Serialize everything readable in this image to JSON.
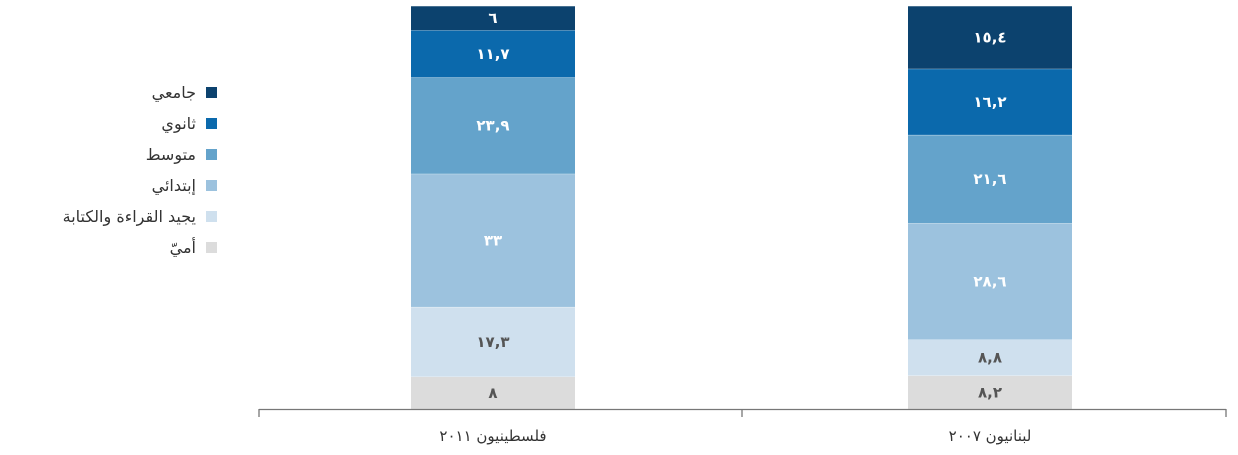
{
  "chart_data": {
    "type": "bar",
    "stacked": true,
    "orientation": "vertical",
    "categories": [
      "فلسطينيون ٢٠١١",
      "لبنانيون ٢٠٠٧"
    ],
    "series": [
      {
        "name": "أميّ",
        "values": [
          8,
          8.2
        ],
        "labels": [
          "٨",
          "٨,٢"
        ],
        "color": "#dcdcdc",
        "label_color": "#555555"
      },
      {
        "name": "يجيد القراءة والكتابة",
        "values": [
          17.3,
          8.8
        ],
        "labels": [
          "١٧,٣",
          "٨,٨"
        ],
        "color": "#cfe0ee",
        "label_color": "#555555"
      },
      {
        "name": "إبتدائي",
        "values": [
          33,
          28.6
        ],
        "labels": [
          "٣٣",
          "٢٨,٦"
        ],
        "color": "#9cc2de",
        "label_color": "#ffffff"
      },
      {
        "name": "متوسط",
        "values": [
          23.9,
          21.6
        ],
        "labels": [
          "٢٣,٩",
          "٢١,٦"
        ],
        "color": "#64a3cb",
        "label_color": "#ffffff"
      },
      {
        "name": "ثانوي",
        "values": [
          11.7,
          16.2
        ],
        "labels": [
          "١١,٧",
          "١٦,٢"
        ],
        "color": "#0b69ac",
        "label_color": "#ffffff"
      },
      {
        "name": "جامعي",
        "values": [
          6,
          15.4
        ],
        "labels": [
          "٦",
          "١٥,٤"
        ],
        "color": "#0c426e",
        "label_color": "#ffffff"
      }
    ],
    "legend_order": [
      "جامعي",
      "ثانوي",
      "متوسط",
      "إبتدائي",
      "يجيد القراءة والكتابة",
      "أميّ"
    ],
    "legend_position": "left",
    "ylim": [
      0,
      100
    ],
    "grid": false
  }
}
